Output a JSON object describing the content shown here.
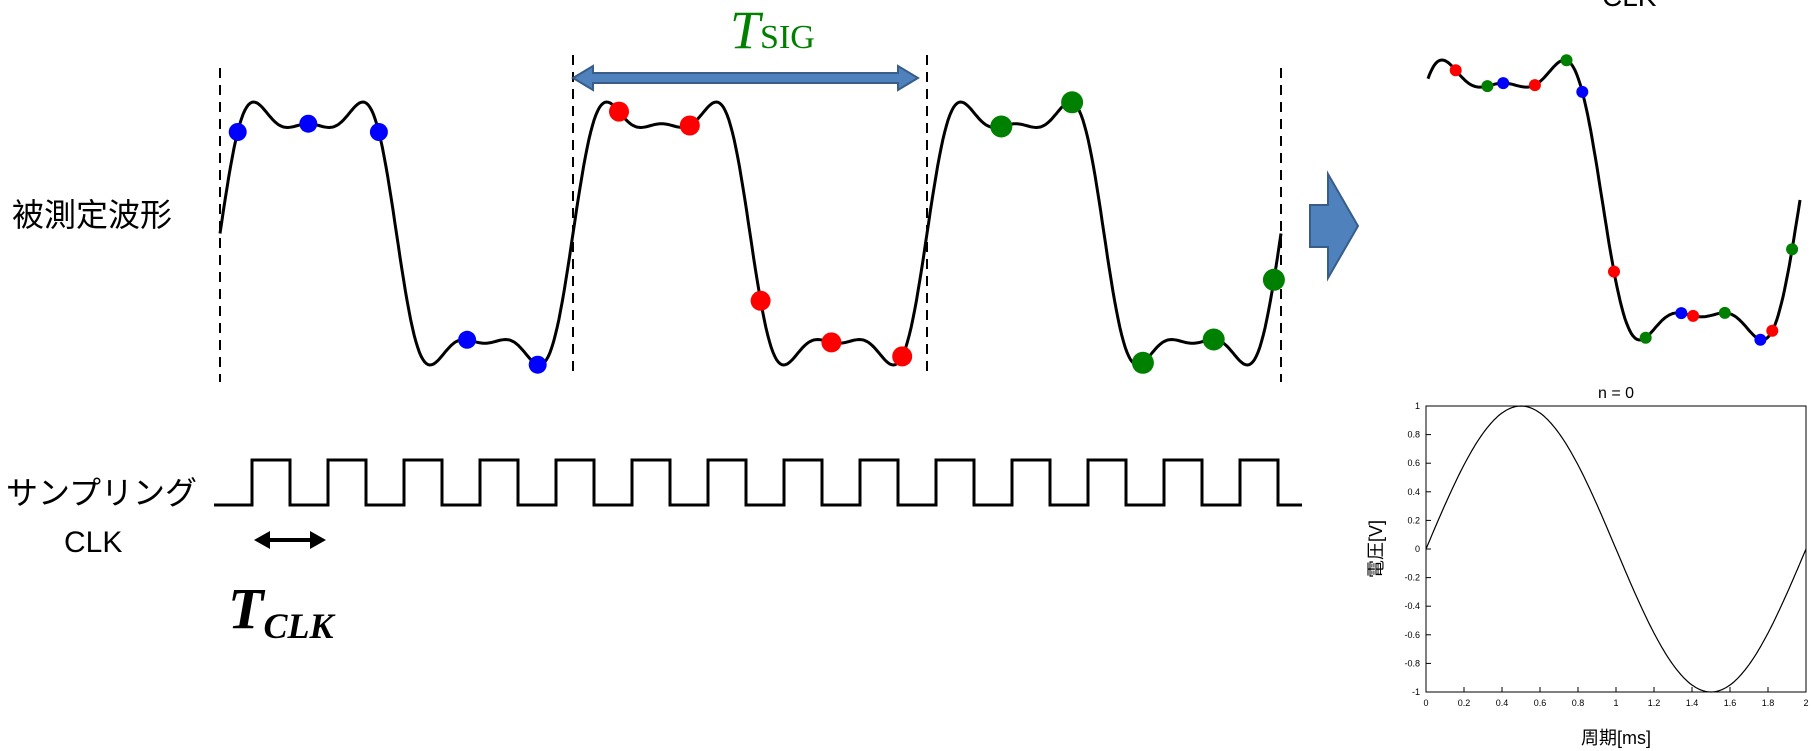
{
  "labels": {
    "waveform": "被測定波形",
    "sampling_line1": "サンプリング",
    "sampling_line2": "CLK",
    "t_sig_main": "T",
    "t_sig_sub": "SIG",
    "t_clk_main": "T",
    "t_clk_sub": "CLK",
    "clk_cut": "CLK"
  },
  "chart_data": {
    "type": "line",
    "title": "n = 0",
    "xlabel": "周期[ms]",
    "ylabel": "電圧[V]",
    "xlim": [
      0,
      2
    ],
    "ylim": [
      -1,
      1
    ],
    "xticks": [
      "0",
      "0.2",
      "0.4",
      "0.6",
      "0.8",
      "1",
      "1.2",
      "1.4",
      "1.6",
      "1.8",
      "2"
    ],
    "yticks": [
      "-1",
      "-0.8",
      "-0.6",
      "-0.4",
      "-0.2",
      "0",
      "0.2",
      "0.4",
      "0.6",
      "0.8",
      "1"
    ],
    "series": [
      {
        "x": [
          0,
          0.1,
          0.2,
          0.3,
          0.4,
          0.5,
          0.6,
          0.7,
          0.8,
          0.9,
          1.0,
          1.1,
          1.2,
          1.3,
          1.4,
          1.5,
          1.6,
          1.7,
          1.8,
          1.9,
          2.0
        ],
        "y": [
          0,
          0.309,
          0.588,
          0.809,
          0.951,
          1,
          0.951,
          0.809,
          0.588,
          0.309,
          0,
          -0.309,
          -0.588,
          -0.809,
          -0.951,
          -1,
          -0.951,
          -0.809,
          -0.588,
          -0.309,
          0
        ]
      }
    ]
  },
  "colors": {
    "blue": "#0000ff",
    "red": "#ff0000",
    "green": "#008000",
    "arrow_fill": "#4f81bd",
    "arrow_stroke": "#385d8a",
    "tsig_text": "#008000"
  }
}
